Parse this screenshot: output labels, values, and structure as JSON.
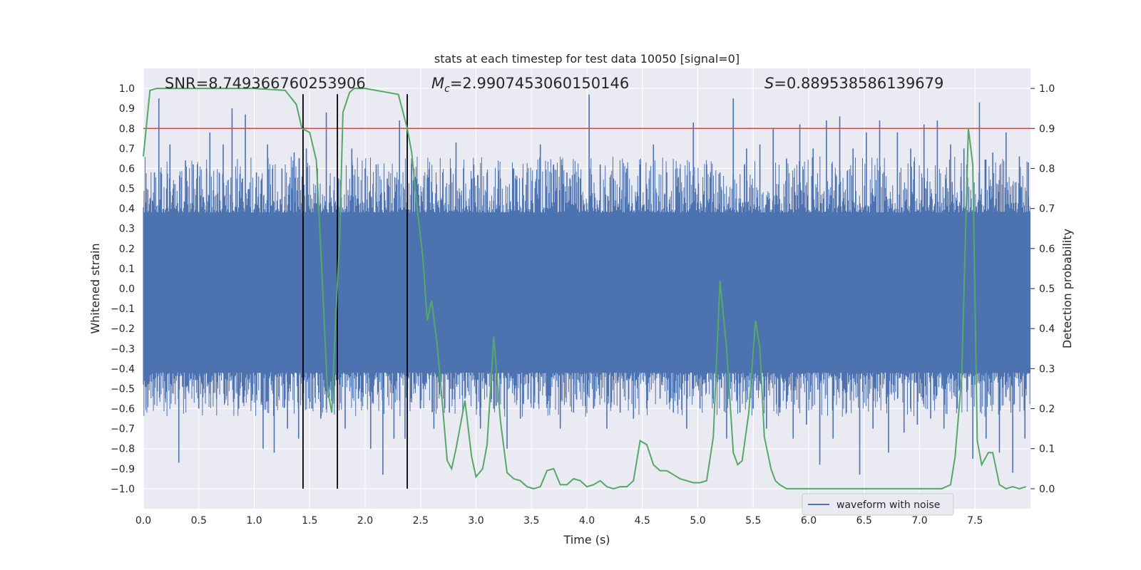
{
  "chart_data": {
    "type": "line",
    "title": "stats at each timestep for test data 10050 [signal=0]",
    "xlabel": "Time (s)",
    "ylabel": "Whitened strain",
    "y2label": "Detection probability",
    "xlim": [
      0.0,
      8.0
    ],
    "ylim": [
      -1.1,
      1.1
    ],
    "y2lim": [
      -0.05,
      1.05
    ],
    "xticks": [
      "0.0",
      "0.5",
      "1.0",
      "1.5",
      "2.0",
      "2.5",
      "3.0",
      "3.5",
      "4.0",
      "4.5",
      "5.0",
      "5.5",
      "6.0",
      "6.5",
      "7.0",
      "7.5"
    ],
    "yticks": [
      "1.0",
      "0.9",
      "0.8",
      "0.7",
      "0.6",
      "0.5",
      "0.4",
      "0.3",
      "0.2",
      "0.1",
      "0.0",
      "−0.1",
      "−0.2",
      "−0.3",
      "−0.4",
      "−0.5",
      "−0.6",
      "−0.7",
      "−0.8",
      "−0.9",
      "−1.0"
    ],
    "y2ticks": [
      "1.0",
      "0.9",
      "0.8",
      "0.7",
      "0.6",
      "0.5",
      "0.4",
      "0.3",
      "0.2",
      "0.1",
      "0.0"
    ],
    "annotations": {
      "snr": "SNR=8.749366760253906",
      "mc_symbol": "M",
      "mc_sub": "c",
      "mc_value": "=2.9907453060150146",
      "s_symbol": "S",
      "s_value": "=0.889538586139679"
    },
    "legend": {
      "position": "lower-right",
      "label": "waveform with noise"
    },
    "threshold": {
      "y2": 0.9,
      "color": "#c44e52"
    },
    "vlines": [
      1.44,
      1.75,
      2.38
    ],
    "waveform": {
      "name": "waveform with noise",
      "color": "#4c72b0",
      "core_low": -0.42,
      "core_high": 0.38,
      "spikes": [
        [
          0.1,
          0.58
        ],
        [
          0.14,
          0.95
        ],
        [
          0.2,
          -0.55
        ],
        [
          0.24,
          0.72
        ],
        [
          0.32,
          -0.87
        ],
        [
          0.38,
          0.64
        ],
        [
          0.45,
          0.62
        ],
        [
          0.5,
          -0.6
        ],
        [
          0.57,
          0.6
        ],
        [
          0.6,
          0.78
        ],
        [
          0.66,
          -0.55
        ],
        [
          0.72,
          0.72
        ],
        [
          0.8,
          0.9
        ],
        [
          0.86,
          -0.6
        ],
        [
          0.92,
          0.87
        ],
        [
          0.98,
          -0.56
        ],
        [
          1.02,
          0.58
        ],
        [
          1.08,
          -0.8
        ],
        [
          1.12,
          0.72
        ],
        [
          1.18,
          -0.82
        ],
        [
          1.25,
          0.6
        ],
        [
          1.3,
          -0.7
        ],
        [
          1.36,
          0.68
        ],
        [
          1.4,
          -0.75
        ],
        [
          1.47,
          0.7
        ],
        [
          1.52,
          -0.6
        ],
        [
          1.57,
          0.6
        ],
        [
          1.6,
          -0.65
        ],
        [
          1.65,
          0.88
        ],
        [
          1.7,
          -0.45
        ],
        [
          1.76,
          0.55
        ],
        [
          1.82,
          -0.7
        ],
        [
          1.88,
          0.7
        ],
        [
          1.94,
          -0.55
        ],
        [
          2.0,
          0.6
        ],
        [
          2.05,
          -0.8
        ],
        [
          2.1,
          0.62
        ],
        [
          2.16,
          -0.93
        ],
        [
          2.2,
          0.55
        ],
        [
          2.26,
          -0.75
        ],
        [
          2.31,
          0.84
        ],
        [
          2.36,
          -0.75
        ],
        [
          2.42,
          0.65
        ],
        [
          2.5,
          -0.6
        ],
        [
          2.56,
          0.55
        ],
        [
          2.62,
          -0.7
        ],
        [
          2.7,
          0.58
        ],
        [
          2.76,
          -0.62
        ],
        [
          2.82,
          0.73
        ],
        [
          2.9,
          -0.55
        ],
        [
          2.98,
          0.62
        ],
        [
          3.04,
          -0.7
        ],
        [
          3.1,
          0.58
        ],
        [
          3.16,
          -0.6
        ],
        [
          3.22,
          0.55
        ],
        [
          3.28,
          -0.8
        ],
        [
          3.34,
          0.6
        ],
        [
          3.4,
          -0.65
        ],
        [
          3.46,
          0.58
        ],
        [
          3.52,
          -0.6
        ],
        [
          3.58,
          0.72
        ],
        [
          3.64,
          -0.55
        ],
        [
          3.7,
          0.62
        ],
        [
          3.76,
          -0.7
        ],
        [
          3.82,
          0.58
        ],
        [
          3.88,
          -0.62
        ],
        [
          3.94,
          0.55
        ],
        [
          4.02,
          0.97
        ],
        [
          4.06,
          -0.6
        ],
        [
          4.12,
          0.62
        ],
        [
          4.18,
          -0.7
        ],
        [
          4.24,
          0.55
        ],
        [
          4.3,
          -0.62
        ],
        [
          4.36,
          0.6
        ],
        [
          4.42,
          -0.65
        ],
        [
          4.48,
          0.62
        ],
        [
          4.54,
          -0.6
        ],
        [
          4.6,
          0.72
        ],
        [
          4.66,
          -0.55
        ],
        [
          4.72,
          0.58
        ],
        [
          4.78,
          -0.62
        ],
        [
          4.84,
          0.6
        ],
        [
          4.9,
          -0.7
        ],
        [
          4.96,
          0.83
        ],
        [
          5.02,
          -0.6
        ],
        [
          5.08,
          0.62
        ],
        [
          5.14,
          -0.55
        ],
        [
          5.2,
          0.58
        ],
        [
          5.26,
          -0.75
        ],
        [
          5.32,
          0.95
        ],
        [
          5.38,
          -0.62
        ],
        [
          5.44,
          0.7
        ],
        [
          5.5,
          -0.6
        ],
        [
          5.56,
          0.72
        ],
        [
          5.62,
          -0.7
        ],
        [
          5.68,
          0.8
        ],
        [
          5.74,
          -0.62
        ],
        [
          5.8,
          0.65
        ],
        [
          5.86,
          -0.75
        ],
        [
          5.92,
          0.82
        ],
        [
          5.98,
          -0.68
        ],
        [
          6.04,
          0.7
        ],
        [
          6.1,
          -0.88
        ],
        [
          6.16,
          0.84
        ],
        [
          6.22,
          -0.75
        ],
        [
          6.28,
          0.86
        ],
        [
          6.34,
          -0.62
        ],
        [
          6.4,
          0.7
        ],
        [
          6.46,
          -0.93
        ],
        [
          6.52,
          0.78
        ],
        [
          6.58,
          -0.7
        ],
        [
          6.64,
          0.84
        ],
        [
          6.72,
          -0.82
        ],
        [
          6.8,
          0.78
        ],
        [
          6.86,
          -0.72
        ],
        [
          6.92,
          0.7
        ],
        [
          6.98,
          -0.68
        ],
        [
          7.04,
          0.82
        ],
        [
          7.1,
          -0.65
        ],
        [
          7.16,
          0.84
        ],
        [
          7.22,
          -0.7
        ],
        [
          7.28,
          0.72
        ],
        [
          7.34,
          -0.6
        ],
        [
          7.4,
          0.7
        ],
        [
          7.48,
          -0.85
        ],
        [
          7.54,
          0.93
        ],
        [
          7.6,
          -0.75
        ],
        [
          7.66,
          0.68
        ],
        [
          7.72,
          -0.82
        ],
        [
          7.78,
          0.78
        ],
        [
          7.84,
          -0.92
        ],
        [
          7.9,
          0.66
        ],
        [
          7.95,
          -0.75
        ],
        [
          7.98,
          0.63
        ]
      ]
    },
    "probability": {
      "name": "detection probability",
      "color": "#55a868",
      "x": [
        0.0,
        0.06,
        0.12,
        0.3,
        0.6,
        1.0,
        1.28,
        1.38,
        1.43,
        1.5,
        1.56,
        1.6,
        1.66,
        1.7,
        1.73,
        1.77,
        1.8,
        1.86,
        1.9,
        1.95,
        2.0,
        2.1,
        2.2,
        2.3,
        2.38,
        2.42,
        2.47,
        2.52,
        2.56,
        2.6,
        2.65,
        2.7,
        2.74,
        2.78,
        2.82,
        2.9,
        2.96,
        3.0,
        3.06,
        3.1,
        3.16,
        3.22,
        3.28,
        3.34,
        3.4,
        3.46,
        3.52,
        3.58,
        3.64,
        3.7,
        3.76,
        3.82,
        3.88,
        3.94,
        4.0,
        4.06,
        4.12,
        4.18,
        4.24,
        4.3,
        4.36,
        4.42,
        4.48,
        4.54,
        4.6,
        4.66,
        4.72,
        4.78,
        4.84,
        4.9,
        4.96,
        5.02,
        5.08,
        5.14,
        5.2,
        5.26,
        5.32,
        5.36,
        5.4,
        5.46,
        5.52,
        5.56,
        5.6,
        5.66,
        5.7,
        5.74,
        5.8,
        5.86,
        5.9,
        5.96,
        6.0,
        6.2,
        6.5,
        6.8,
        7.0,
        7.2,
        7.28,
        7.32,
        7.38,
        7.44,
        7.48,
        7.52,
        7.56,
        7.62,
        7.66,
        7.72,
        7.78,
        7.84,
        7.9,
        7.96
      ],
      "y": [
        0.83,
        0.995,
        1.0,
        1.0,
        1.0,
        1.0,
        0.995,
        0.96,
        0.9,
        0.89,
        0.82,
        0.6,
        0.25,
        0.19,
        0.4,
        0.62,
        0.94,
        0.99,
        1.0,
        1.0,
        1.0,
        0.995,
        0.99,
        0.985,
        0.9,
        0.84,
        0.7,
        0.58,
        0.42,
        0.47,
        0.36,
        0.2,
        0.07,
        0.05,
        0.1,
        0.22,
        0.08,
        0.03,
        0.05,
        0.11,
        0.38,
        0.17,
        0.04,
        0.025,
        0.02,
        0.005,
        0.0,
        0.005,
        0.045,
        0.05,
        0.01,
        0.01,
        0.025,
        0.02,
        0.005,
        0.01,
        0.02,
        0.005,
        0.0,
        0.005,
        0.005,
        0.02,
        0.12,
        0.11,
        0.06,
        0.045,
        0.045,
        0.035,
        0.025,
        0.02,
        0.015,
        0.015,
        0.02,
        0.13,
        0.52,
        0.35,
        0.09,
        0.06,
        0.07,
        0.19,
        0.42,
        0.35,
        0.13,
        0.05,
        0.02,
        0.01,
        0.0,
        0.0,
        0.0,
        0.0,
        0.0,
        0.0,
        0.0,
        0.0,
        0.0,
        0.0,
        0.01,
        0.08,
        0.28,
        0.9,
        0.81,
        0.12,
        0.06,
        0.09,
        0.09,
        0.01,
        0.0,
        0.005,
        0.0,
        0.005
      ]
    }
  }
}
